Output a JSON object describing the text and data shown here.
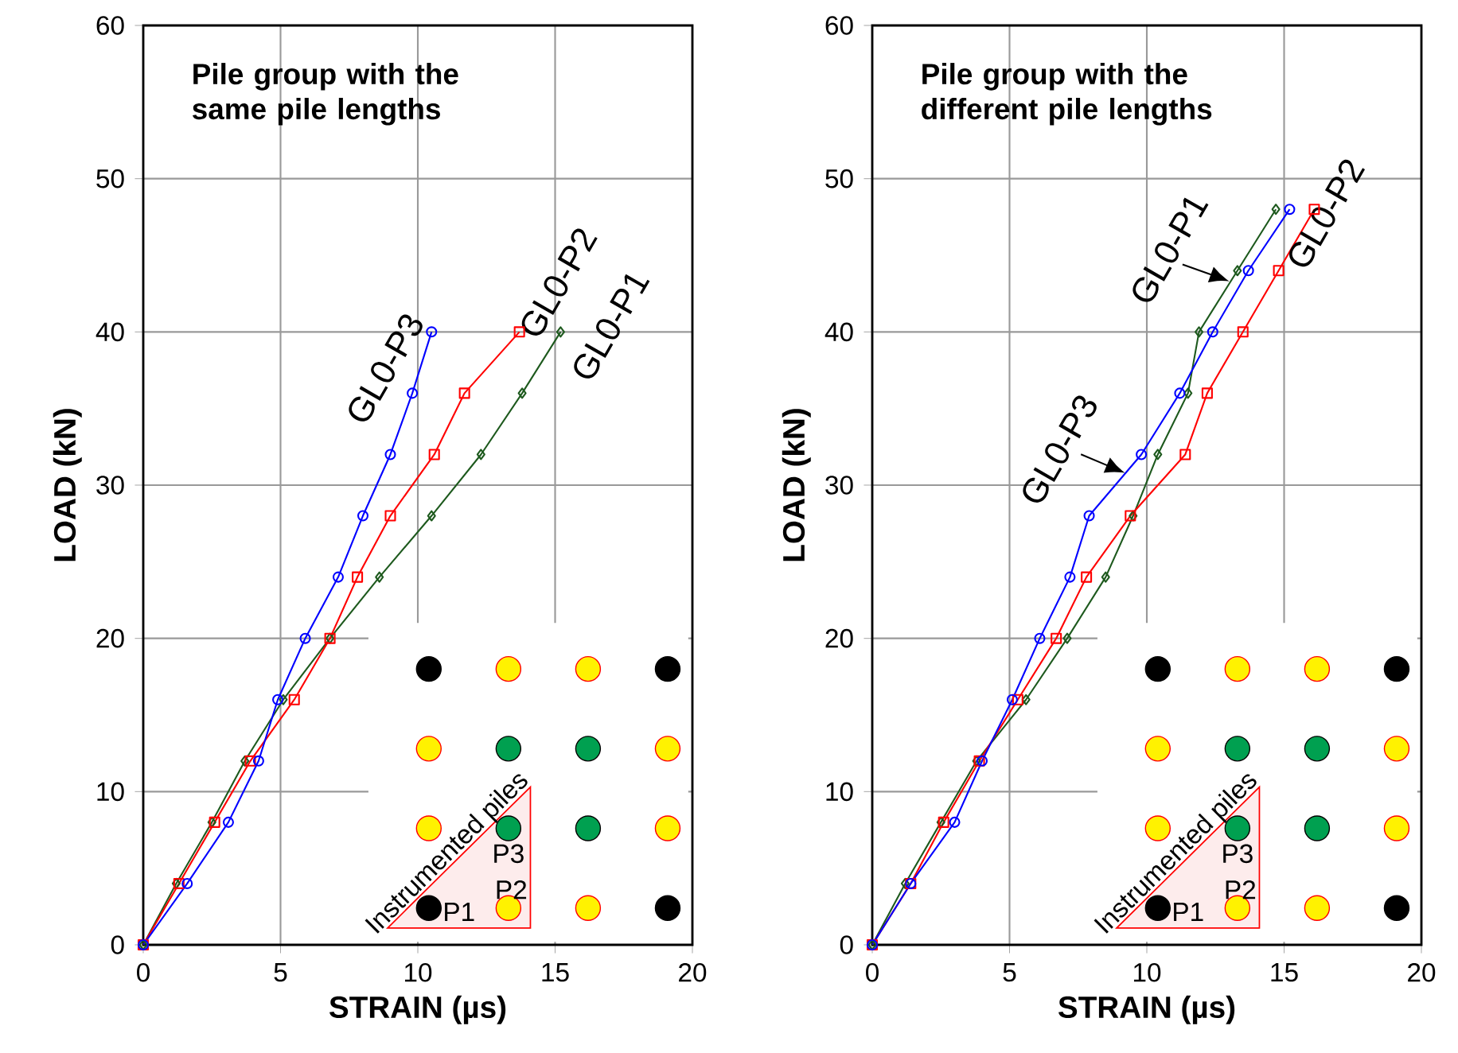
{
  "chart_data": [
    {
      "type": "line",
      "title": "Pile group with the same pile lengths",
      "xlabel": "STRAIN (µs)",
      "ylabel": "LOAD (kN)",
      "xlim": [
        0,
        20
      ],
      "ylim": [
        0,
        60
      ],
      "xticks": [
        0,
        5,
        10,
        15,
        20
      ],
      "yticks": [
        0,
        10,
        20,
        30,
        40,
        50,
        60
      ],
      "grid": true,
      "legend": false,
      "annotations": [
        "Instrumented piles",
        "P1",
        "P2",
        "P3"
      ],
      "series": [
        {
          "name": "GL0-P1",
          "color": "#1e5a1e",
          "marker": "diamond",
          "x": [
            0,
            1.2,
            2.5,
            3.7,
            5.1,
            6.8,
            8.6,
            10.5,
            12.3,
            13.8,
            15.2
          ],
          "values": [
            0,
            4,
            8,
            12,
            16,
            20,
            24,
            28,
            32,
            36,
            40
          ]
        },
        {
          "name": "GL0-P2",
          "color": "#ff0000",
          "marker": "square",
          "x": [
            0,
            1.3,
            2.6,
            3.9,
            5.5,
            6.8,
            7.8,
            9.0,
            10.6,
            11.7,
            13.7
          ],
          "values": [
            0,
            4,
            8,
            12,
            16,
            20,
            24,
            28,
            32,
            36,
            40
          ]
        },
        {
          "name": "GL0-P3",
          "color": "#0000ff",
          "marker": "circle",
          "x": [
            0,
            1.6,
            3.1,
            4.2,
            4.9,
            5.9,
            7.1,
            8.0,
            9.0,
            9.8,
            10.5
          ],
          "values": [
            0,
            4,
            8,
            12,
            16,
            20,
            24,
            28,
            32,
            36,
            40
          ]
        }
      ]
    },
    {
      "type": "line",
      "title": "Pile group with the different pile lengths",
      "xlabel": "STRAIN (µs)",
      "ylabel": "LOAD (kN)",
      "xlim": [
        0,
        20
      ],
      "ylim": [
        0,
        60
      ],
      "xticks": [
        0,
        5,
        10,
        15,
        20
      ],
      "yticks": [
        0,
        10,
        20,
        30,
        40,
        50,
        60
      ],
      "grid": true,
      "legend": false,
      "annotations": [
        "Instrumented piles",
        "P1",
        "P2",
        "P3"
      ],
      "series": [
        {
          "name": "GL0-P1",
          "color": "#1e5a1e",
          "marker": "diamond",
          "x": [
            0,
            1.2,
            2.5,
            3.8,
            5.6,
            7.1,
            8.5,
            9.5,
            10.4,
            11.5,
            11.9,
            13.3,
            14.7
          ],
          "values": [
            0,
            4,
            8,
            12,
            16,
            20,
            24,
            28,
            32,
            36,
            40,
            44,
            48
          ]
        },
        {
          "name": "GL0-P2",
          "color": "#ff0000",
          "marker": "square",
          "x": [
            0,
            1.4,
            2.6,
            3.9,
            5.3,
            6.7,
            7.8,
            9.4,
            11.4,
            12.2,
            13.5,
            14.8,
            16.1
          ],
          "values": [
            0,
            4,
            8,
            12,
            16,
            20,
            24,
            28,
            32,
            36,
            40,
            44,
            48
          ]
        },
        {
          "name": "GL0-P3",
          "color": "#0000ff",
          "marker": "circle",
          "x": [
            0,
            1.4,
            3.0,
            4.0,
            5.1,
            6.1,
            7.2,
            7.9,
            9.8,
            11.2,
            12.4,
            13.7,
            15.2
          ],
          "values": [
            0,
            4,
            8,
            12,
            16,
            20,
            24,
            28,
            32,
            36,
            40,
            44,
            48
          ]
        }
      ]
    }
  ]
}
